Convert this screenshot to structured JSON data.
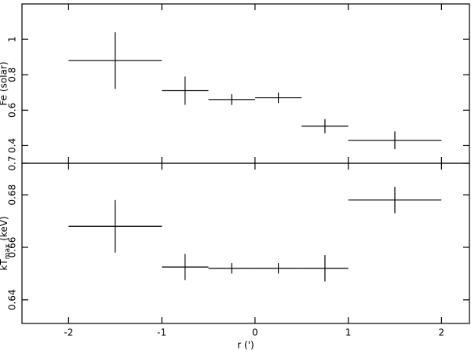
{
  "chart_data": [
    {
      "type": "errorbar",
      "ylabel": "Fe (solar)",
      "x": [
        -1.5,
        -0.75,
        -0.25,
        0.25,
        0.75,
        1.5
      ],
      "xerr": [
        0.5,
        0.25,
        0.25,
        0.25,
        0.25,
        0.5
      ],
      "values": [
        0.88,
        0.71,
        0.66,
        0.67,
        0.51,
        0.43
      ],
      "yerr": [
        0.16,
        0.08,
        0.03,
        0.03,
        0.04,
        0.05
      ],
      "xlim": [
        -2.5,
        2.3
      ],
      "ylim": [
        0.3,
        1.2
      ],
      "xticks": [
        -2,
        -1,
        0,
        1,
        2
      ],
      "yticks": [
        0.4,
        0.6,
        0.8,
        1
      ],
      "color": "#000000"
    },
    {
      "type": "errorbar",
      "ylabel": "kT_max (keV)",
      "xlabel": "r (')",
      "x": [
        -1.5,
        -0.75,
        -0.25,
        0.25,
        0.75,
        1.5
      ],
      "xerr": [
        0.5,
        0.25,
        0.25,
        0.25,
        0.25,
        0.5
      ],
      "values": [
        0.668,
        0.6525,
        0.652,
        0.652,
        0.652,
        0.678
      ],
      "yerr": [
        0.01,
        0.005,
        0.002,
        0.002,
        0.005,
        0.005
      ],
      "xlim": [
        -2.5,
        2.3
      ],
      "ylim": [
        0.631,
        0.692
      ],
      "xticks": [
        -2,
        -1,
        0,
        1,
        2
      ],
      "yticks": [
        0.64,
        0.66,
        0.68,
        {
          "value": 0.692,
          "label": "0.7"
        }
      ],
      "color": "#000000"
    }
  ]
}
